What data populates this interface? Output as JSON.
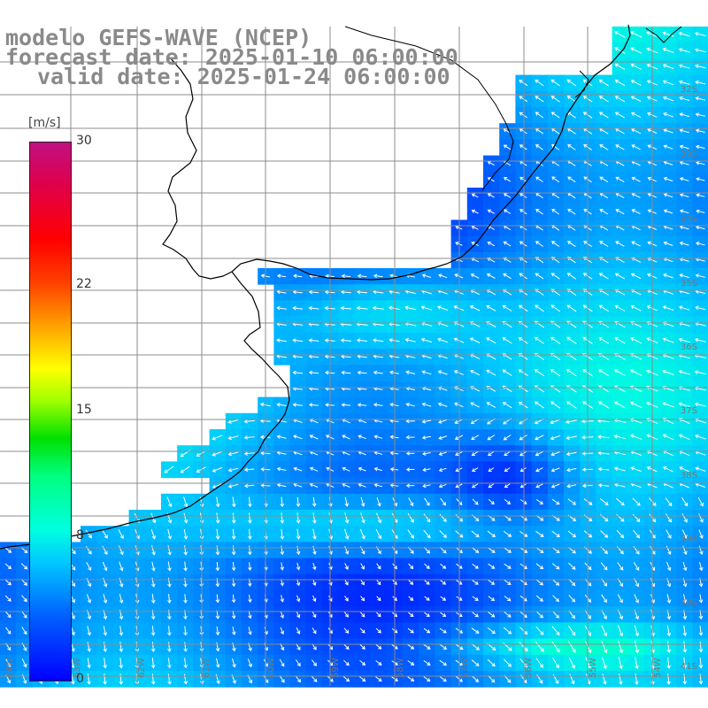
{
  "header": {
    "model": "modelo GEFS-WAVE (NCEP)",
    "forecast": "forecast date: 2025-01-10 06:00:00",
    "valid": "valid date: 2025-01-24 06:00:00"
  },
  "colorbar": {
    "unit": "[m/s]",
    "ticks": [
      {
        "label": "30",
        "value": 30
      },
      {
        "label": "22",
        "value": 22
      },
      {
        "label": "15",
        "value": 15
      },
      {
        "label": "8",
        "value": 8
      },
      {
        "label": "0",
        "value": 0
      }
    ],
    "min": 0,
    "max": 30
  },
  "lat_labels": [
    "32S",
    "33S",
    "34S",
    "35S",
    "36S",
    "37S",
    "38S",
    "39S",
    "40S",
    "41S"
  ],
  "lon_labels": [
    "64W",
    "63W",
    "62W",
    "61W",
    "60W",
    "59W",
    "58W",
    "57W",
    "56W",
    "55W",
    "54W"
  ],
  "colors": {
    "land": "#ffffff",
    "coast": "#000000",
    "grid": "#8c8c8c",
    "arrow": "#ffffff"
  }
}
